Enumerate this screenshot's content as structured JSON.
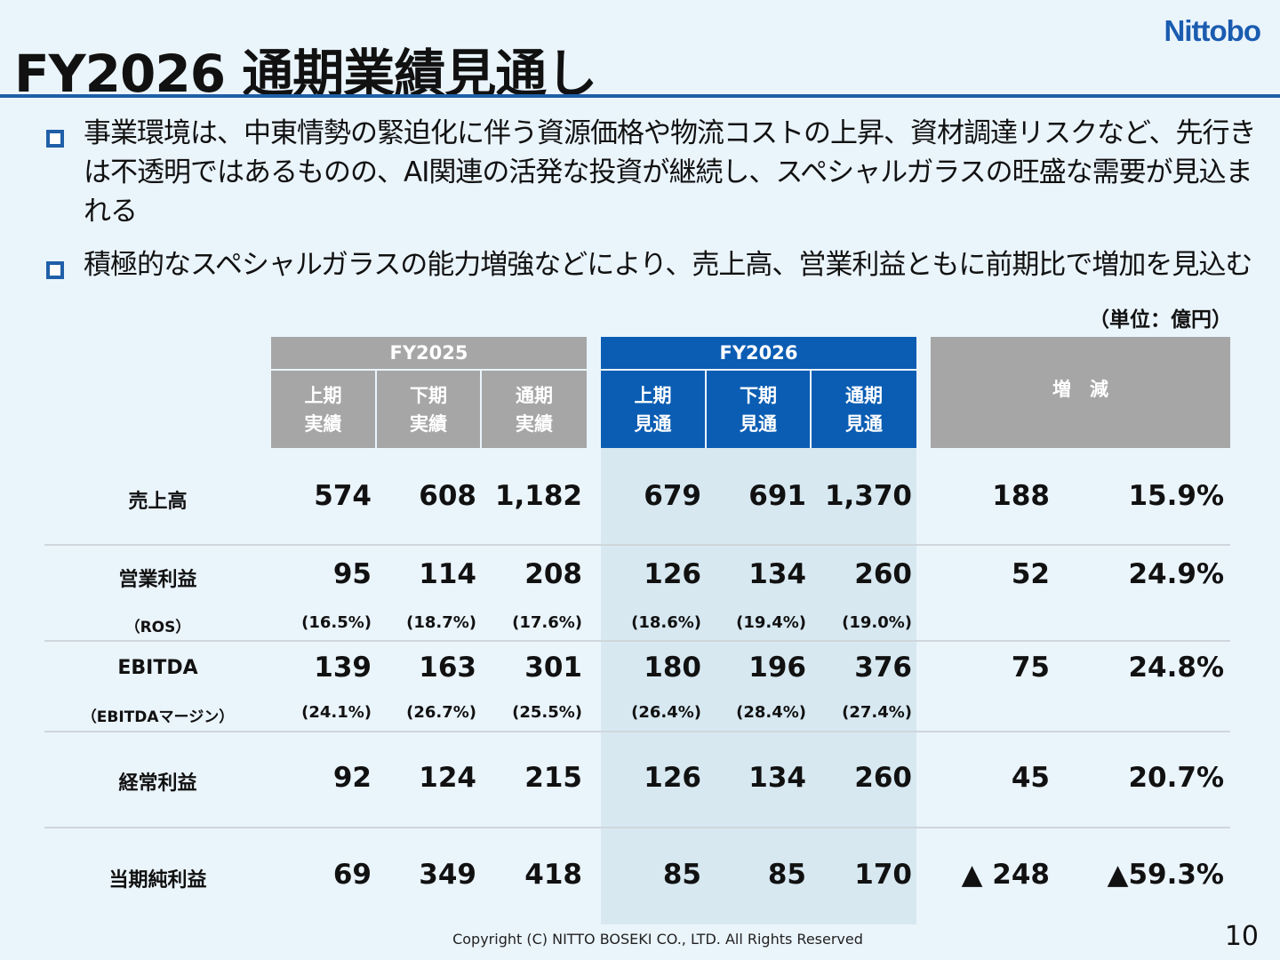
{
  "brand": {
    "logo_text": "Nittobo",
    "accent_color": "#1f5fa8",
    "table_blue": "#0a5db3",
    "table_gray": "#a6a6a6",
    "band_color": "#d7e8f1"
  },
  "title": "FY2026 通期業績見通し",
  "bullets": [
    "事業環境は、中東情勢の緊迫化に伴う資源価格や物流コストの上昇、資材調達リスクなど、先行きは不透明ではあるものの、AI関連の活発な投資が継続し、スペシャルガラスの旺盛な需要が見込まれる",
    "積極的なスペシャルガラスの能力増強などにより、売上高、営業利益ともに前期比で増加を見込む"
  ],
  "unit": "（単位：億円）",
  "table": {
    "group_headers": {
      "fy2025": "FY2025",
      "fy2026": "FY2026",
      "change": "増　減"
    },
    "col_headers": [
      [
        "上期",
        "実績"
      ],
      [
        "下期",
        "実績"
      ],
      [
        "通期",
        "実績"
      ],
      [
        "上期",
        "見通"
      ],
      [
        "下期",
        "見通"
      ],
      [
        "通期",
        "見通"
      ]
    ],
    "rows": [
      {
        "label": "売上高",
        "values": [
          "574",
          "608",
          "1,182",
          "679",
          "691",
          "1,370"
        ],
        "diff": "188",
        "diff_pct": "15.9%"
      },
      {
        "label": "営業利益",
        "values": [
          "95",
          "114",
          "208",
          "126",
          "134",
          "260"
        ],
        "diff": "52",
        "diff_pct": "24.9%",
        "sub_label": "（ROS）",
        "sub_values": [
          "(16.5%)",
          "(18.7%)",
          "(17.6%)",
          "(18.6%)",
          "(19.4%)",
          "(19.0%)"
        ]
      },
      {
        "label": "EBITDA",
        "values": [
          "139",
          "163",
          "301",
          "180",
          "196",
          "376"
        ],
        "diff": "75",
        "diff_pct": "24.8%",
        "sub_label": "（EBITDAマージン）",
        "sub_values": [
          "(24.1%)",
          "(26.7%)",
          "(25.5%)",
          "(26.4%)",
          "(28.4%)",
          "(27.4%)"
        ]
      },
      {
        "label": "経常利益",
        "values": [
          "92",
          "124",
          "215",
          "126",
          "134",
          "260"
        ],
        "diff": "45",
        "diff_pct": "20.7%"
      },
      {
        "label": "当期純利益",
        "values": [
          "69",
          "349",
          "418",
          "85",
          "85",
          "170"
        ],
        "diff": "▲ 248",
        "diff_pct": "▲59.3%"
      }
    ]
  },
  "footer": "Copyright (C)  NITTO BOSEKI CO., LTD. All Rights Reserved",
  "page_number": "10"
}
